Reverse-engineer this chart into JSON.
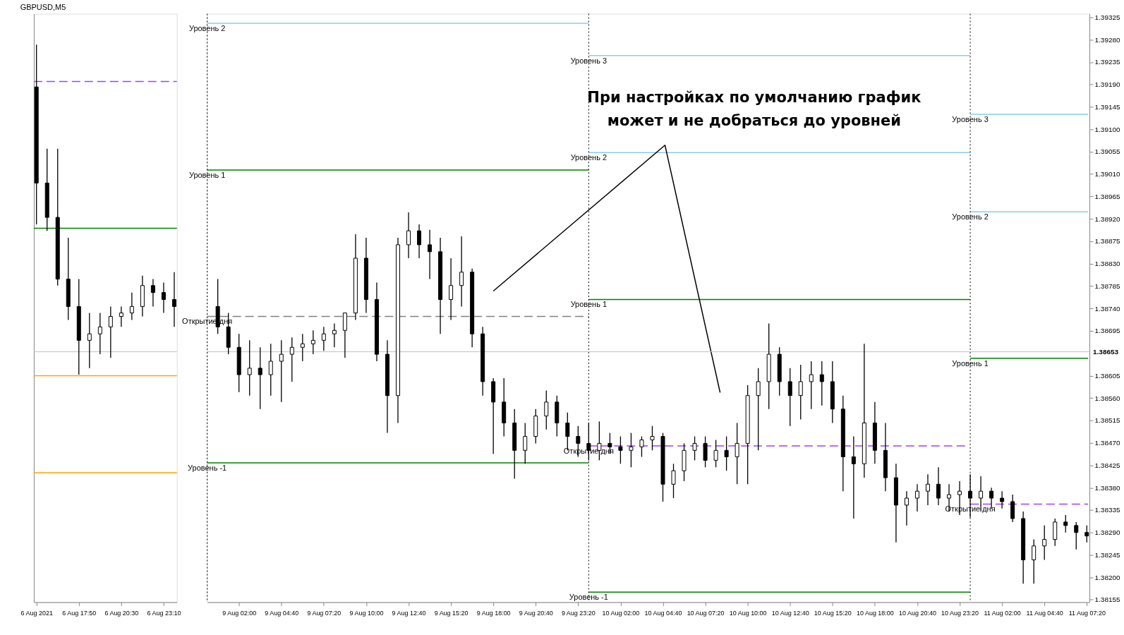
{
  "chart_data": [
    {
      "type": "candlestick",
      "title": "GBPUSD,M5",
      "x": [
        "2021-08-06T15:10",
        "2021-08-06T15:50",
        "2021-08-06T16:30",
        "2021-08-06T17:10",
        "2021-08-06T17:50",
        "2021-08-06T18:30",
        "2021-08-06T19:10",
        "2021-08-06T19:50",
        "2021-08-06T20:30",
        "2021-08-06T21:10",
        "2021-08-06T21:50",
        "2021-08-06T22:30",
        "2021-08-06T23:10",
        "2021-08-06T23:50"
      ],
      "ohlc": [
        [
          1.39185,
          1.3927,
          1.38909,
          1.38992
        ],
        [
          1.38992,
          1.39061,
          1.38896,
          1.38923
        ],
        [
          1.38923,
          1.39061,
          1.38786,
          1.38799
        ],
        [
          1.38799,
          1.38882,
          1.38717,
          1.38744
        ],
        [
          1.38744,
          1.38799,
          1.38607,
          1.38676
        ],
        [
          1.38676,
          1.38731,
          1.3862,
          1.38689
        ],
        [
          1.38689,
          1.38731,
          1.38648,
          1.38703
        ],
        [
          1.38703,
          1.38744,
          1.38641,
          1.38724
        ],
        [
          1.38724,
          1.38744,
          1.38703,
          1.38731
        ],
        [
          1.38731,
          1.38772,
          1.38717,
          1.38744
        ],
        [
          1.38744,
          1.38806,
          1.38724,
          1.38786
        ],
        [
          1.38786,
          1.38799,
          1.38744,
          1.38772
        ],
        [
          1.38772,
          1.38792,
          1.38731,
          1.38758
        ],
        [
          1.38758,
          1.38813,
          1.38703,
          1.38744
        ]
      ],
      "series": [
        {
          "type": "line",
          "color": "#a040ff",
          "line_style": "dashed",
          "x": [
            "2021-08-06T15:00",
            "2021-08-07T00:00"
          ],
          "values": [
            1.39196,
            1.39196
          ]
        },
        {
          "type": "line",
          "color": "#008000",
          "x": [
            "2021-08-06T15:00",
            "2021-08-07T00:00"
          ],
          "values": [
            1.38901,
            1.38901
          ]
        },
        {
          "type": "line",
          "color": "#ffa500",
          "x": [
            "2021-08-06T15:00",
            "2021-08-07T00:00"
          ],
          "values": [
            1.38605,
            1.38605
          ]
        },
        {
          "type": "line",
          "color": "#ffa500",
          "x": [
            "2021-08-06T15:00",
            "2021-08-07T00:00"
          ],
          "values": [
            1.3841,
            1.3841
          ]
        }
      ],
      "ref_lines": [
        {
          "axis": "y",
          "value": 1.38653,
          "color": "#c0c0c0"
        }
      ],
      "xlim": [
        "2021-08-06T15:00",
        "2021-08-07T00:00"
      ],
      "ylim": [
        1.3815,
        1.39332
      ],
      "xticks": [
        {
          "value": "2021-08-06T15:10",
          "label": "6 Aug 2021"
        },
        {
          "value": "2021-08-06T17:50",
          "label": "6 Aug 17:50"
        },
        {
          "value": "2021-08-06T20:30",
          "label": "6 Aug 20:30"
        },
        {
          "value": "2021-08-06T23:10",
          "label": "6 Aug 23:10"
        }
      ],
      "tick_labels": "x",
      "grid": false
    },
    {
      "type": "candlestick",
      "x": [
        "2021-08-09T00:40",
        "2021-08-09T01:20",
        "2021-08-09T02:00",
        "2021-08-09T02:40",
        "2021-08-09T03:20",
        "2021-08-09T04:00",
        "2021-08-09T04:40",
        "2021-08-09T05:20",
        "2021-08-09T06:00",
        "2021-08-09T06:40",
        "2021-08-09T07:20",
        "2021-08-09T08:00",
        "2021-08-09T08:40",
        "2021-08-09T09:20",
        "2021-08-09T10:00",
        "2021-08-09T10:40",
        "2021-08-09T11:20",
        "2021-08-09T12:00",
        "2021-08-09T12:40",
        "2021-08-09T13:20",
        "2021-08-09T14:00",
        "2021-08-09T14:40",
        "2021-08-09T15:20",
        "2021-08-09T16:00",
        "2021-08-09T16:40",
        "2021-08-09T17:20",
        "2021-08-09T18:00",
        "2021-08-09T18:40",
        "2021-08-09T19:20",
        "2021-08-09T20:00",
        "2021-08-09T20:40",
        "2021-08-09T21:20",
        "2021-08-09T22:00",
        "2021-08-09T22:40",
        "2021-08-09T23:20",
        "2021-08-10T00:00",
        "2021-08-10T00:40",
        "2021-08-10T01:20",
        "2021-08-10T02:00",
        "2021-08-10T02:40",
        "2021-08-10T03:20",
        "2021-08-10T04:00",
        "2021-08-10T04:40",
        "2021-08-10T05:20",
        "2021-08-10T06:00",
        "2021-08-10T06:40",
        "2021-08-10T07:20",
        "2021-08-10T08:00",
        "2021-08-10T08:40",
        "2021-08-10T09:20",
        "2021-08-10T10:00",
        "2021-08-10T10:40",
        "2021-08-10T11:20",
        "2021-08-10T12:00",
        "2021-08-10T12:40",
        "2021-08-10T13:20",
        "2021-08-10T14:00",
        "2021-08-10T14:40",
        "2021-08-10T15:20",
        "2021-08-10T16:00",
        "2021-08-10T16:40",
        "2021-08-10T17:20",
        "2021-08-10T18:00",
        "2021-08-10T18:40",
        "2021-08-10T19:20",
        "2021-08-10T20:00",
        "2021-08-10T20:40",
        "2021-08-10T21:20",
        "2021-08-10T22:00",
        "2021-08-10T22:40",
        "2021-08-10T23:20",
        "2021-08-11T00:00",
        "2021-08-11T00:40",
        "2021-08-11T01:20",
        "2021-08-11T02:00",
        "2021-08-11T02:40",
        "2021-08-11T03:20",
        "2021-08-11T04:00",
        "2021-08-11T04:40",
        "2021-08-11T05:20",
        "2021-08-11T06:00",
        "2021-08-11T06:40",
        "2021-08-11T07:20"
      ],
      "ohlc": [
        [
          1.38744,
          1.38799,
          1.38689,
          1.38703
        ],
        [
          1.38703,
          1.38731,
          1.38648,
          1.38662
        ],
        [
          1.38662,
          1.38689,
          1.38572,
          1.38607
        ],
        [
          1.38607,
          1.38676,
          1.38565,
          1.3862
        ],
        [
          1.3862,
          1.38662,
          1.38538,
          1.38607
        ],
        [
          1.38607,
          1.38669,
          1.38565,
          1.38634
        ],
        [
          1.38634,
          1.38676,
          1.38552,
          1.38648
        ],
        [
          1.38648,
          1.38682,
          1.38593,
          1.38662
        ],
        [
          1.38662,
          1.38689,
          1.38634,
          1.38669
        ],
        [
          1.38669,
          1.38696,
          1.38648,
          1.38676
        ],
        [
          1.38676,
          1.38703,
          1.38655,
          1.38689
        ],
        [
          1.38689,
          1.3871,
          1.38662,
          1.38696
        ],
        [
          1.38696,
          1.38731,
          1.38641,
          1.38731
        ],
        [
          1.38731,
          1.38889,
          1.38717,
          1.38841
        ],
        [
          1.38841,
          1.38882,
          1.38731,
          1.38758
        ],
        [
          1.38758,
          1.38792,
          1.38634,
          1.38648
        ],
        [
          1.38648,
          1.38676,
          1.3849,
          1.38565
        ],
        [
          1.38565,
          1.38882,
          1.3851,
          1.38868
        ],
        [
          1.38868,
          1.38933,
          1.38841,
          1.38896
        ],
        [
          1.38896,
          1.38909,
          1.38841,
          1.38868
        ],
        [
          1.38868,
          1.38898,
          1.38799,
          1.38854
        ],
        [
          1.38854,
          1.38882,
          1.38689,
          1.38758
        ],
        [
          1.38758,
          1.38841,
          1.38717,
          1.38786
        ],
        [
          1.38786,
          1.38885,
          1.38744,
          1.38813
        ],
        [
          1.38813,
          1.3882,
          1.38662,
          1.38689
        ],
        [
          1.38689,
          1.38703,
          1.38565,
          1.38593
        ],
        [
          1.38593,
          1.386,
          1.38448,
          1.38552
        ],
        [
          1.38552,
          1.386,
          1.38483,
          1.3851
        ],
        [
          1.3851,
          1.38538,
          1.38398,
          1.38455
        ],
        [
          1.38455,
          1.3851,
          1.38428,
          1.38483
        ],
        [
          1.38483,
          1.38538,
          1.38469,
          1.38524
        ],
        [
          1.38524,
          1.38575,
          1.38497,
          1.38552
        ],
        [
          1.38552,
          1.38565,
          1.38483,
          1.3851
        ],
        [
          1.3851,
          1.38531,
          1.38455,
          1.38483
        ],
        [
          1.38483,
          1.38504,
          1.38442,
          1.38469
        ],
        [
          1.38469,
          1.3851,
          1.38435,
          1.38455
        ],
        [
          1.38455,
          1.38513,
          1.38435,
          1.38469
        ],
        [
          1.38469,
          1.3849,
          1.38448,
          1.38462
        ],
        [
          1.38462,
          1.38483,
          1.38428,
          1.38455
        ],
        [
          1.38455,
          1.3849,
          1.38421,
          1.38462
        ],
        [
          1.38462,
          1.38483,
          1.38442,
          1.38476
        ],
        [
          1.38476,
          1.38504,
          1.38455,
          1.38483
        ],
        [
          1.38483,
          1.3849,
          1.38352,
          1.38387
        ],
        [
          1.38387,
          1.38428,
          1.38359,
          1.38414
        ],
        [
          1.38414,
          1.38469,
          1.38393,
          1.38455
        ],
        [
          1.38455,
          1.38483,
          1.38435,
          1.38469
        ],
        [
          1.38469,
          1.38483,
          1.38421,
          1.38435
        ],
        [
          1.38435,
          1.38476,
          1.38421,
          1.38455
        ],
        [
          1.38455,
          1.38483,
          1.38414,
          1.38442
        ],
        [
          1.38442,
          1.3851,
          1.38387,
          1.38469
        ],
        [
          1.38469,
          1.38586,
          1.38387,
          1.38565
        ],
        [
          1.38565,
          1.3862,
          1.38455,
          1.38593
        ],
        [
          1.38593,
          1.3871,
          1.38538,
          1.38648
        ],
        [
          1.38648,
          1.38662,
          1.38565,
          1.38593
        ],
        [
          1.38593,
          1.3862,
          1.38504,
          1.38565
        ],
        [
          1.38565,
          1.38627,
          1.38517,
          1.38593
        ],
        [
          1.38593,
          1.38634,
          1.38538,
          1.38607
        ],
        [
          1.38607,
          1.38634,
          1.38545,
          1.38593
        ],
        [
          1.38593,
          1.38634,
          1.3851,
          1.38538
        ],
        [
          1.38538,
          1.38565,
          1.38373,
          1.38442
        ],
        [
          1.38442,
          1.38483,
          1.38318,
          1.38428
        ],
        [
          1.38428,
          1.38669,
          1.384,
          1.3851
        ],
        [
          1.3851,
          1.38552,
          1.38428,
          1.38455
        ],
        [
          1.38455,
          1.3851,
          1.38373,
          1.384
        ],
        [
          1.384,
          1.38428,
          1.3827,
          1.38345
        ],
        [
          1.38345,
          1.38373,
          1.38304,
          1.38359
        ],
        [
          1.38359,
          1.38387,
          1.38332,
          1.38373
        ],
        [
          1.38373,
          1.38407,
          1.38345,
          1.38387
        ],
        [
          1.38387,
          1.38421,
          1.38345,
          1.38359
        ],
        [
          1.38359,
          1.38387,
          1.38332,
          1.38366
        ],
        [
          1.38366,
          1.38393,
          1.38325,
          1.38373
        ],
        [
          1.38373,
          1.38407,
          1.3832,
          1.38359
        ],
        [
          1.38359,
          1.38403,
          1.38332,
          1.38373
        ],
        [
          1.38373,
          1.3838,
          1.38338,
          1.38359
        ],
        [
          1.38359,
          1.38373,
          1.38338,
          1.38352
        ],
        [
          1.38352,
          1.38366,
          1.38311,
          1.38318
        ],
        [
          1.38318,
          1.38332,
          1.38187,
          1.38235
        ],
        [
          1.38235,
          1.38276,
          1.38187,
          1.38263
        ],
        [
          1.38263,
          1.38304,
          1.38235,
          1.38276
        ],
        [
          1.38276,
          1.38318,
          1.38263,
          1.38311
        ],
        [
          1.38311,
          1.38325,
          1.3829,
          1.38304
        ],
        [
          1.38304,
          1.38311,
          1.38256,
          1.3829
        ],
        [
          1.3829,
          1.38304,
          1.3827,
          1.38283
        ]
      ],
      "series": [
        {
          "type": "line",
          "color": "#87ceeb",
          "x": [
            "2021-08-09T00:00",
            "2021-08-10T00:00"
          ],
          "values": [
            1.39313,
            1.39313
          ]
        },
        {
          "type": "line",
          "color": "#008000",
          "x": [
            "2021-08-09T00:00",
            "2021-08-10T00:00"
          ],
          "values": [
            1.39018,
            1.39018
          ]
        },
        {
          "type": "line",
          "color": "#808080",
          "line_style": "dashed",
          "x": [
            "2021-08-09T00:00",
            "2021-08-10T00:00"
          ],
          "values": [
            1.38724,
            1.38724
          ]
        },
        {
          "type": "line",
          "color": "#008000",
          "x": [
            "2021-08-09T00:00",
            "2021-08-10T00:00"
          ],
          "values": [
            1.3843,
            1.3843
          ]
        },
        {
          "type": "line",
          "color": "#87ceeb",
          "x": [
            "2021-08-10T00:00",
            "2021-08-11T00:00"
          ],
          "values": [
            1.39248,
            1.39248
          ]
        },
        {
          "type": "line",
          "color": "#87ceeb",
          "x": [
            "2021-08-10T00:00",
            "2021-08-11T00:00"
          ],
          "values": [
            1.39053,
            1.39053
          ]
        },
        {
          "type": "line",
          "color": "#008000",
          "x": [
            "2021-08-10T00:00",
            "2021-08-11T00:00"
          ],
          "values": [
            1.38758,
            1.38758
          ]
        },
        {
          "type": "line",
          "color": "#a040ff",
          "line_style": "dashed",
          "x": [
            "2021-08-10T00:00",
            "2021-08-10T23:48"
          ],
          "values": [
            1.38464,
            1.38464
          ]
        },
        {
          "type": "line",
          "color": "#008000",
          "x": [
            "2021-08-10T00:00",
            "2021-08-11T00:00"
          ],
          "values": [
            1.3817,
            1.3817
          ]
        },
        {
          "type": "line",
          "color": "#87ceeb",
          "x": [
            "2021-08-11T00:00",
            "2021-08-11T07:25"
          ],
          "values": [
            1.3913,
            1.3913
          ]
        },
        {
          "type": "line",
          "color": "#87ceeb",
          "x": [
            "2021-08-11T00:00",
            "2021-08-11T07:25"
          ],
          "values": [
            1.38934,
            1.38934
          ]
        },
        {
          "type": "line",
          "color": "#008000",
          "x": [
            "2021-08-11T00:00",
            "2021-08-11T07:25"
          ],
          "values": [
            1.3864,
            1.3864
          ]
        },
        {
          "type": "line",
          "color": "#a040ff",
          "line_style": "dashed",
          "x": [
            "2021-08-11T00:00",
            "2021-08-11T07:25"
          ],
          "values": [
            1.38347,
            1.38347
          ]
        },
        {
          "type": "line",
          "color": "#000000",
          "x": [
            "2021-08-09T18:00",
            "2021-08-10T04:48",
            "2021-08-10T08:16"
          ],
          "values": [
            1.38775,
            1.39068,
            1.38571
          ]
        }
      ],
      "ref_lines": [
        {
          "axis": "x",
          "value": "2021-08-09T00:00",
          "color": "#000000",
          "line_style": "dotted"
        },
        {
          "axis": "x",
          "value": "2021-08-10T00:00",
          "color": "#000000",
          "line_style": "dotted"
        },
        {
          "axis": "x",
          "value": "2021-08-11T00:00",
          "color": "#000000",
          "line_style": "dotted"
        },
        {
          "axis": "y",
          "value": 1.38653,
          "label": "1.38653",
          "color": "#c0c0c0"
        }
      ],
      "annotations": [
        "При настройках по умолчанию график\nможет и не добраться до уровней",
        {
          "text": "Уровень 2",
          "x": "2021-08-09T00:00",
          "y": 1.39313
        },
        {
          "text": "Уровень 1",
          "x": "2021-08-09T00:00",
          "y": 1.39018
        },
        {
          "text": "Открытие дня",
          "x": "2021-08-09T00:00",
          "y": 1.38724
        },
        {
          "text": "Уровень -1",
          "x": "2021-08-09T00:00",
          "y": 1.3843
        },
        {
          "text": "Уровень 3",
          "x": "2021-08-10T00:00",
          "y": 1.39248
        },
        {
          "text": "Уровень 2",
          "x": "2021-08-10T00:00",
          "y": 1.39053
        },
        {
          "text": "Уровень 1",
          "x": "2021-08-10T00:00",
          "y": 1.38758
        },
        {
          "text": "Открытие дня",
          "x": "2021-08-10T00:00",
          "y": 1.38464
        },
        {
          "text": "Уровень -1",
          "x": "2021-08-10T00:00",
          "y": 1.3817
        },
        {
          "text": "Уровень 3",
          "x": "2021-08-11T00:00",
          "y": 1.3913
        },
        {
          "text": "Уровень 2",
          "x": "2021-08-11T00:00",
          "y": 1.38934
        },
        {
          "text": "Уровень 1",
          "x": "2021-08-11T00:00",
          "y": 1.3864
        },
        {
          "text": "Открытие дня",
          "x": "2021-08-11T00:00",
          "y": 1.38347
        }
      ],
      "xlim": [
        "2021-08-09T00:00",
        "2021-08-11T07:30"
      ],
      "ylim": [
        1.3815,
        1.39332
      ],
      "xticks": [
        {
          "value": "2021-08-09T02:00",
          "label": "9 Aug 02:00"
        },
        {
          "value": "2021-08-09T04:40",
          "label": "9 Aug 04:40"
        },
        {
          "value": "2021-08-09T07:20",
          "label": "9 Aug 07:20"
        },
        {
          "value": "2021-08-09T10:00",
          "label": "9 Aug 10:00"
        },
        {
          "value": "2021-08-09T12:40",
          "label": "9 Aug 12:40"
        },
        {
          "value": "2021-08-09T15:20",
          "label": "9 Aug 15:20"
        },
        {
          "value": "2021-08-09T18:00",
          "label": "9 Aug 18:00"
        },
        {
          "value": "2021-08-09T20:40",
          "label": "9 Aug 20:40"
        },
        {
          "value": "2021-08-09T23:20",
          "label": "9 Aug 23:20"
        },
        {
          "value": "2021-08-10T02:00",
          "label": "10 Aug 02:00"
        },
        {
          "value": "2021-08-10T04:40",
          "label": "10 Aug 04:40"
        },
        {
          "value": "2021-08-10T07:20",
          "label": "10 Aug 07:20"
        },
        {
          "value": "2021-08-10T10:00",
          "label": "10 Aug 10:00"
        },
        {
          "value": "2021-08-10T12:40",
          "label": "10 Aug 12:40"
        },
        {
          "value": "2021-08-10T15:20",
          "label": "10 Aug 15:20"
        },
        {
          "value": "2021-08-10T18:00",
          "label": "10 Aug 18:00"
        },
        {
          "value": "2021-08-10T20:40",
          "label": "10 Aug 20:40"
        },
        {
          "value": "2021-08-10T23:20",
          "label": "10 Aug 23:20"
        },
        {
          "value": "2021-08-11T02:00",
          "label": "11 Aug 02:00"
        },
        {
          "value": "2021-08-11T04:40",
          "label": "11 Aug 04:40"
        },
        {
          "value": "2021-08-11T07:20",
          "label": "11 Aug 07:20"
        }
      ],
      "yticks": [
        {
          "value": 1.38155,
          "label": "1.38155"
        },
        {
          "value": 1.382,
          "label": "1.38200"
        },
        {
          "value": 1.38245,
          "label": "1.38245"
        },
        {
          "value": 1.3829,
          "label": "1.38290"
        },
        {
          "value": 1.38335,
          "label": "1.38335"
        },
        {
          "value": 1.3838,
          "label": "1.38380"
        },
        {
          "value": 1.38425,
          "label": "1.38425"
        },
        {
          "value": 1.3847,
          "label": "1.38470"
        },
        {
          "value": 1.38515,
          "label": "1.38515"
        },
        {
          "value": 1.3856,
          "label": "1.38560"
        },
        {
          "value": 1.38605,
          "label": "1.38605"
        },
        {
          "value": 1.38695,
          "label": "1.38695"
        },
        {
          "value": 1.3874,
          "label": "1.38740"
        },
        {
          "value": 1.38785,
          "label": "1.38785"
        },
        {
          "value": 1.3883,
          "label": "1.38830"
        },
        {
          "value": 1.38875,
          "label": "1.38875"
        },
        {
          "value": 1.3892,
          "label": "1.38920"
        },
        {
          "value": 1.38965,
          "label": "1.38965"
        },
        {
          "value": 1.3901,
          "label": "1.39010"
        },
        {
          "value": 1.39055,
          "label": "1.39055"
        },
        {
          "value": 1.391,
          "label": "1.39100"
        },
        {
          "value": 1.39145,
          "label": "1.39145"
        },
        {
          "value": 1.3919,
          "label": "1.39190"
        },
        {
          "value": 1.39235,
          "label": "1.39235"
        },
        {
          "value": 1.3928,
          "label": "1.39280"
        },
        {
          "value": 1.39325,
          "label": "1.39325"
        }
      ],
      "grid": false
    }
  ]
}
